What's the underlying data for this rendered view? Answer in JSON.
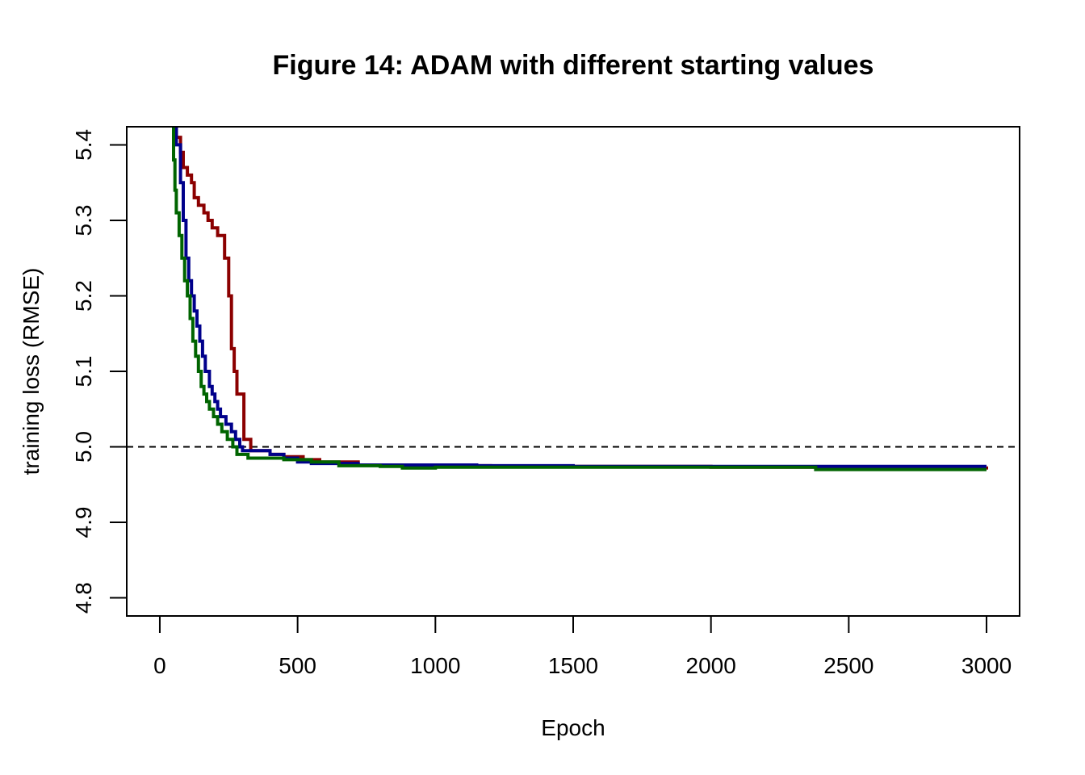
{
  "chart_data": {
    "type": "line",
    "title": "Figure 14: ADAM with different starting values",
    "xlabel": "Epoch",
    "ylabel": "training loss (RMSE)",
    "xlim": [
      -120,
      3120
    ],
    "ylim": [
      4.776,
      5.424
    ],
    "x_ticks": [
      0,
      500,
      1000,
      1500,
      2000,
      2500,
      3000
    ],
    "y_ticks": [
      4.8,
      4.9,
      5.0,
      5.1,
      5.2,
      5.3,
      5.4
    ],
    "x_tick_labels": [
      "0",
      "500",
      "1000",
      "1500",
      "2000",
      "2500",
      "3000"
    ],
    "y_tick_labels": [
      "4.8",
      "4.9",
      "5.0",
      "5.1",
      "5.2",
      "5.3",
      "5.4"
    ],
    "reference_line": {
      "y": 5.0,
      "style": "dashed",
      "color": "#000000"
    },
    "grid": false,
    "series": [
      {
        "color": "#8b0000",
        "step": true,
        "points": [
          [
            55,
            5.43
          ],
          [
            60,
            5.41
          ],
          [
            75,
            5.39
          ],
          [
            85,
            5.37
          ],
          [
            100,
            5.36
          ],
          [
            115,
            5.35
          ],
          [
            125,
            5.33
          ],
          [
            140,
            5.32
          ],
          [
            160,
            5.31
          ],
          [
            175,
            5.3
          ],
          [
            190,
            5.29
          ],
          [
            210,
            5.28
          ],
          [
            235,
            5.25
          ],
          [
            250,
            5.2
          ],
          [
            260,
            5.13
          ],
          [
            270,
            5.1
          ],
          [
            280,
            5.07
          ],
          [
            305,
            5.01
          ],
          [
            330,
            4.995
          ],
          [
            400,
            4.99
          ],
          [
            450,
            4.987
          ],
          [
            520,
            4.983
          ],
          [
            580,
            4.98
          ],
          [
            720,
            4.976
          ],
          [
            1100,
            4.975
          ],
          [
            1200,
            4.974
          ],
          [
            2000,
            4.973
          ],
          [
            2500,
            4.972
          ],
          [
            3000,
            4.97
          ]
        ]
      },
      {
        "color": "#00008b",
        "step": true,
        "points": [
          [
            50,
            5.43
          ],
          [
            60,
            5.4
          ],
          [
            75,
            5.35
          ],
          [
            85,
            5.3
          ],
          [
            95,
            5.25
          ],
          [
            105,
            5.22
          ],
          [
            115,
            5.2
          ],
          [
            125,
            5.18
          ],
          [
            135,
            5.16
          ],
          [
            145,
            5.14
          ],
          [
            155,
            5.12
          ],
          [
            165,
            5.1
          ],
          [
            180,
            5.08
          ],
          [
            190,
            5.07
          ],
          [
            200,
            5.06
          ],
          [
            210,
            5.05
          ],
          [
            220,
            5.04
          ],
          [
            240,
            5.03
          ],
          [
            260,
            5.02
          ],
          [
            275,
            5.01
          ],
          [
            290,
            5.0
          ],
          [
            300,
            4.995
          ],
          [
            400,
            4.99
          ],
          [
            450,
            4.985
          ],
          [
            500,
            4.98
          ],
          [
            550,
            4.978
          ],
          [
            720,
            4.976
          ],
          [
            1000,
            4.976
          ],
          [
            1150,
            4.975
          ],
          [
            1500,
            4.974
          ],
          [
            2500,
            4.974
          ],
          [
            3000,
            4.974
          ]
        ]
      },
      {
        "color": "#006400",
        "step": true,
        "points": [
          [
            45,
            5.43
          ],
          [
            50,
            5.38
          ],
          [
            55,
            5.34
          ],
          [
            60,
            5.31
          ],
          [
            70,
            5.28
          ],
          [
            80,
            5.25
          ],
          [
            90,
            5.22
          ],
          [
            100,
            5.2
          ],
          [
            110,
            5.17
          ],
          [
            120,
            5.14
          ],
          [
            130,
            5.12
          ],
          [
            140,
            5.1
          ],
          [
            150,
            5.08
          ],
          [
            160,
            5.07
          ],
          [
            170,
            5.06
          ],
          [
            180,
            5.05
          ],
          [
            195,
            5.04
          ],
          [
            210,
            5.03
          ],
          [
            225,
            5.02
          ],
          [
            245,
            5.01
          ],
          [
            265,
            5.0
          ],
          [
            280,
            4.99
          ],
          [
            320,
            4.985
          ],
          [
            450,
            4.983
          ],
          [
            550,
            4.98
          ],
          [
            650,
            4.975
          ],
          [
            800,
            4.974
          ],
          [
            880,
            4.972
          ],
          [
            1000,
            4.973
          ],
          [
            2000,
            4.973
          ],
          [
            2380,
            4.97
          ],
          [
            3000,
            4.97
          ]
        ]
      }
    ]
  }
}
